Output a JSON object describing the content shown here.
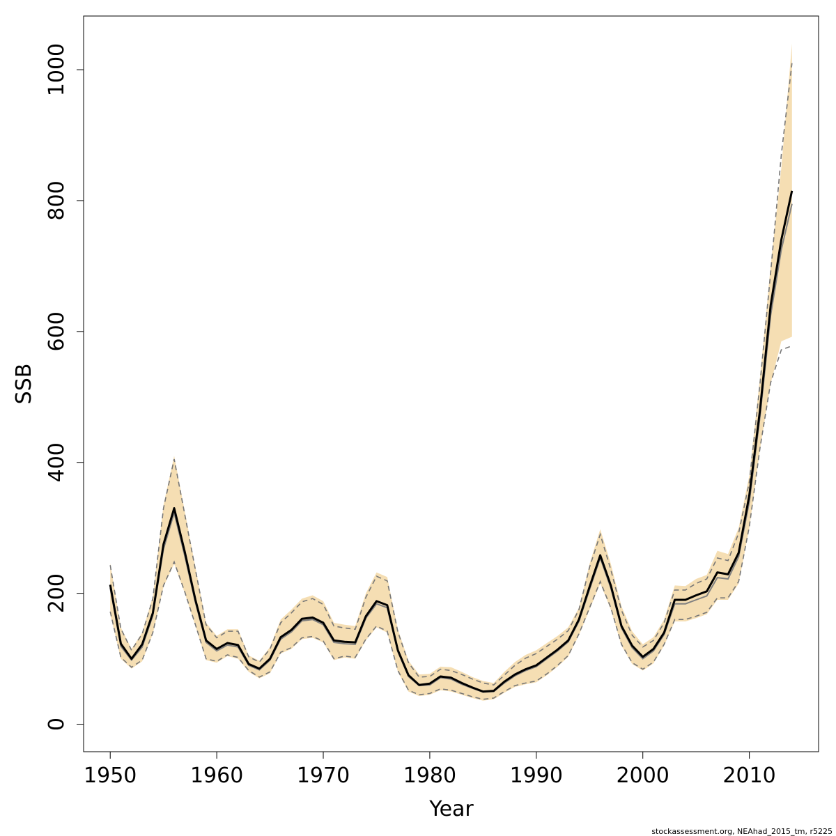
{
  "chart_data": {
    "type": "line",
    "title": "",
    "xlabel": "Year",
    "ylabel": "SSB",
    "xlim": [
      1947.5,
      2016.5
    ],
    "ylim": [
      -42,
      1082
    ],
    "x_ticks": [
      1950,
      1960,
      1970,
      1980,
      1990,
      2000,
      2010
    ],
    "y_ticks": [
      0,
      200,
      400,
      600,
      800,
      1000
    ],
    "x_tick_labels": [
      "1950",
      "1960",
      "1970",
      "1980",
      "1990",
      "2000",
      "2010"
    ],
    "y_tick_labels": [
      "0",
      "200",
      "400",
      "600",
      "800",
      "1000"
    ],
    "grid": false,
    "legend": "none",
    "credit": "stockassessment.org, NEAhad_2015_tm, r5225",
    "colors": {
      "band": "#f5deb3",
      "estimate": "#000000",
      "ci_dashed": "#777777",
      "secondary": "#808080"
    },
    "x": [
      1950,
      1951,
      1952,
      1953,
      1954,
      1955,
      1956,
      1957,
      1958,
      1959,
      1960,
      1961,
      1962,
      1963,
      1964,
      1965,
      1966,
      1967,
      1968,
      1969,
      1970,
      1971,
      1972,
      1973,
      1974,
      1975,
      1976,
      1977,
      1978,
      1979,
      1980,
      1981,
      1982,
      1983,
      1984,
      1985,
      1986,
      1987,
      1988,
      1989,
      1990,
      1991,
      1992,
      1993,
      1994,
      1995,
      1996,
      1997,
      1998,
      1999,
      2000,
      2001,
      2002,
      2003,
      2004,
      2005,
      2006,
      2007,
      2008,
      2009,
      2010,
      2011,
      2012,
      2013,
      2014
    ],
    "series": [
      {
        "role": "band_upper",
        "values": [
          246,
          148,
          115,
          140,
          195,
          335,
          410,
          325,
          240,
          155,
          135,
          145,
          145,
          105,
          97,
          118,
          160,
          175,
          192,
          197,
          188,
          155,
          152,
          150,
          200,
          232,
          225,
          145,
          97,
          76,
          77,
          88,
          87,
          80,
          72,
          66,
          63,
          80,
          95,
          106,
          113,
          124,
          135,
          148,
          178,
          245,
          298,
          245,
          180,
          142,
          122,
          133,
          160,
          212,
          211,
          222,
          228,
          265,
          260,
          300,
          380,
          530,
          700,
          850,
          1040
        ]
      },
      {
        "role": "band_lower",
        "values": [
          168,
          100,
          85,
          96,
          138,
          210,
          245,
          200,
          150,
          98,
          94,
          104,
          100,
          80,
          70,
          78,
          108,
          115,
          130,
          132,
          125,
          98,
          102,
          100,
          128,
          148,
          140,
          80,
          50,
          43,
          45,
          52,
          50,
          45,
          40,
          36,
          38,
          48,
          57,
          61,
          64,
          75,
          88,
          103,
          136,
          175,
          215,
          175,
          120,
          92,
          82,
          93,
          120,
          157,
          157,
          162,
          168,
          190,
          190,
          215,
          300,
          420,
          520,
          585,
          592
        ]
      },
      {
        "role": "estimate",
        "values": [
          213,
          123,
          100,
          122,
          170,
          275,
          330,
          263,
          190,
          128,
          115,
          124,
          121,
          92,
          85,
          100,
          133,
          144,
          161,
          163,
          155,
          128,
          126,
          125,
          165,
          188,
          182,
          113,
          75,
          60,
          62,
          73,
          71,
          63,
          56,
          50,
          51,
          65,
          76,
          84,
          90,
          102,
          114,
          128,
          160,
          210,
          258,
          212,
          150,
          120,
          103,
          115,
          140,
          190,
          190,
          197,
          203,
          232,
          229,
          262,
          350,
          480,
          640,
          740,
          815
        ]
      },
      {
        "role": "secondary_estimate",
        "values": [
          208,
          119,
          98,
          118,
          166,
          268,
          323,
          257,
          186,
          125,
          112,
          121,
          118,
          90,
          83,
          98,
          130,
          141,
          158,
          160,
          152,
          125,
          123,
          122,
          162,
          184,
          178,
          111,
          73,
          59,
          60,
          71,
          69,
          61,
          55,
          49,
          50,
          63,
          74,
          82,
          88,
          100,
          112,
          126,
          157,
          206,
          254,
          208,
          147,
          117,
          100,
          112,
          137,
          184,
          184,
          190,
          196,
          224,
          222,
          256,
          340,
          470,
          625,
          725,
          795
        ]
      },
      {
        "role": "ci_upper_dashed",
        "values": [
          243,
          146,
          113,
          138,
          192,
          330,
          405,
          320,
          236,
          152,
          132,
          142,
          142,
          103,
          95,
          115,
          155,
          170,
          187,
          192,
          183,
          150,
          147,
          145,
          194,
          226,
          219,
          141,
          94,
          72,
          73,
          84,
          82,
          76,
          69,
          63,
          60,
          75,
          90,
          101,
          108,
          119,
          130,
          143,
          175,
          240,
          290,
          236,
          174,
          136,
          118,
          128,
          155,
          205,
          205,
          215,
          222,
          254,
          250,
          292,
          370,
          520,
          690,
          870,
          1010
        ]
      },
      {
        "role": "ci_lower_dashed",
        "values": [
          172,
          102,
          87,
          98,
          140,
          212,
          248,
          202,
          152,
          100,
          96,
          106,
          102,
          82,
          72,
          80,
          110,
          117,
          132,
          134,
          127,
          100,
          104,
          102,
          130,
          150,
          142,
          82,
          52,
          45,
          47,
          54,
          52,
          47,
          42,
          38,
          40,
          50,
          59,
          63,
          66,
          77,
          90,
          105,
          138,
          178,
          218,
          178,
          122,
          94,
          84,
          95,
          122,
          160,
          160,
          165,
          171,
          193,
          193,
          218,
          302,
          422,
          522,
          572,
          578
        ]
      }
    ]
  }
}
